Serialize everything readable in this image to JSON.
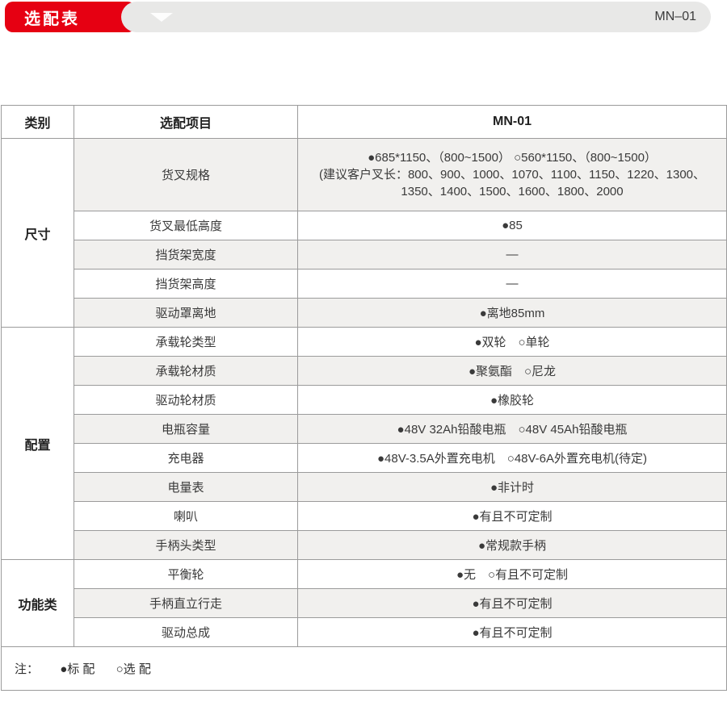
{
  "banner": {
    "title": "选配表",
    "model": "MN–01",
    "accent_red": "#e60012",
    "bar_gray": "#e8e8e7"
  },
  "table": {
    "headers": [
      "类别",
      "选配项目",
      "MN-01"
    ],
    "row_alt_color": "#f1f0ee",
    "groups": [
      {
        "category": "尺寸",
        "rows": [
          {
            "item": "货叉规格",
            "value_lines": [
              "●685*1150、（800~1500） ○560*1150、（800~1500）",
              "(建议客户叉长：800、900、1000、1070、1100、1150、1220、1300、",
              "1350、1400、1500、1600、1800、2000"
            ]
          },
          {
            "item": "货叉最低高度",
            "value": "●85"
          },
          {
            "item": "挡货架宽度",
            "value": "—"
          },
          {
            "item": "挡货架高度",
            "value": "—"
          },
          {
            "item": "驱动罩离地",
            "value": "●离地85mm"
          }
        ]
      },
      {
        "category": "配置",
        "rows": [
          {
            "item": "承载轮类型",
            "value": "●双轮　○单轮"
          },
          {
            "item": "承载轮材质",
            "value": "●聚氨酯　○尼龙"
          },
          {
            "item": "驱动轮材质",
            "value": "●橡胶轮"
          },
          {
            "item": "电瓶容量",
            "value": "●48V 32Ah铅酸电瓶　○48V 45Ah铅酸电瓶"
          },
          {
            "item": "充电器",
            "value": "●48V-3.5A外置充电机　○48V-6A外置充电机(待定)"
          },
          {
            "item": "电量表",
            "value": "●非计时"
          },
          {
            "item": "喇叭",
            "value": "●有且不可定制"
          },
          {
            "item": "手柄头类型",
            "value": "●常规款手柄"
          }
        ]
      },
      {
        "category": "功能类",
        "rows": [
          {
            "item": "平衡轮",
            "value": "●无　○有且不可定制"
          },
          {
            "item": "手柄直立行走",
            "value": "●有且不可定制"
          },
          {
            "item": "驱动总成",
            "value": "●有且不可定制"
          }
        ]
      }
    ],
    "note": {
      "label": "注：",
      "standard": "●标 配",
      "optional": "○选 配"
    }
  }
}
